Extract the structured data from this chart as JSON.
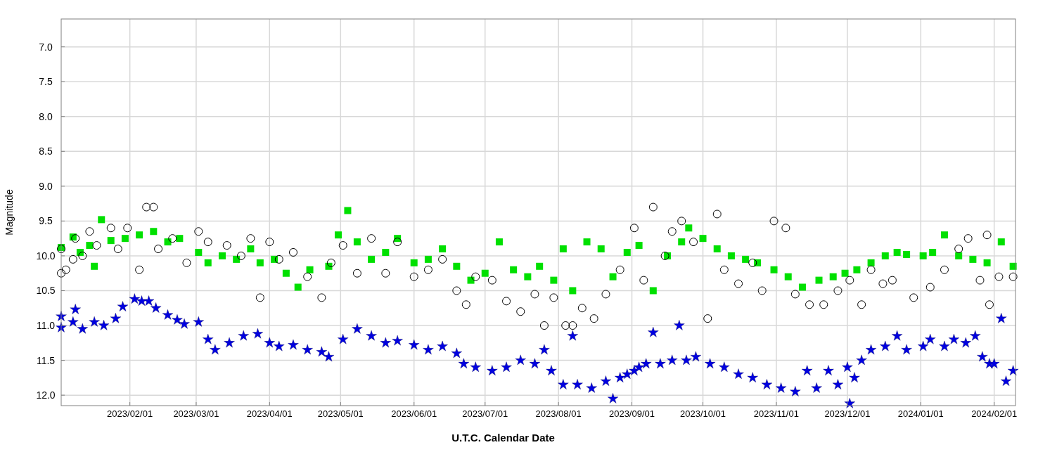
{
  "chart_data": {
    "type": "scatter",
    "xlabel": "U.T.C. Calendar Date",
    "ylabel": "Magnitude",
    "xlim": [
      "2023-01-03",
      "2024-02-10"
    ],
    "xticks": [
      {
        "value": "2023-02-01",
        "label": "2023/02/01"
      },
      {
        "value": "2023-03-01",
        "label": "2023/03/01"
      },
      {
        "value": "2023-04-01",
        "label": "2023/04/01"
      },
      {
        "value": "2023-05-01",
        "label": "2023/05/01"
      },
      {
        "value": "2023-06-01",
        "label": "2023/06/01"
      },
      {
        "value": "2023-07-01",
        "label": "2023/07/01"
      },
      {
        "value": "2023-08-01",
        "label": "2023/08/01"
      },
      {
        "value": "2023-09-01",
        "label": "2023/09/01"
      },
      {
        "value": "2023-10-01",
        "label": "2023/10/01"
      },
      {
        "value": "2023-11-01",
        "label": "2023/11/01"
      },
      {
        "value": "2023-12-01",
        "label": "2023/12/01"
      },
      {
        "value": "2024-01-01",
        "label": "2024/01/01"
      },
      {
        "value": "2024-02-01",
        "label": "2024/02/01"
      }
    ],
    "ylim": [
      12.15,
      6.6
    ],
    "yticks": [
      {
        "value": 7,
        "label": "7.0"
      },
      7.5,
      {
        "value": 8,
        "label": "8.0"
      },
      8.5,
      {
        "value": 9,
        "label": "9.0"
      },
      9.5,
      {
        "value": 10,
        "label": "10.0"
      },
      10.5,
      {
        "value": 11,
        "label": "11.0"
      },
      11.5,
      {
        "value": 12,
        "label": "12.0"
      }
    ],
    "grid": true,
    "series": [
      {
        "color": "#000000",
        "marker": "circle",
        "x": [
          "2023-01-03",
          "2023-01-03",
          "2023-01-05",
          "2023-01-08",
          "2023-01-09",
          "2023-01-12",
          "2023-01-15",
          "2023-01-18",
          "2023-01-24",
          "2023-01-27",
          "2023-01-31",
          "2023-02-05",
          "2023-02-08",
          "2023-02-11",
          "2023-02-13",
          "2023-02-19",
          "2023-02-25",
          "2023-03-02",
          "2023-03-06",
          "2023-03-14",
          "2023-03-20",
          "2023-03-24",
          "2023-03-28",
          "2023-04-01",
          "2023-04-05",
          "2023-04-11",
          "2023-04-17",
          "2023-04-23",
          "2023-04-27",
          "2023-05-02",
          "2023-05-08",
          "2023-05-14",
          "2023-05-20",
          "2023-05-25",
          "2023-06-01",
          "2023-06-07",
          "2023-06-13",
          "2023-06-19",
          "2023-06-23",
          "2023-06-27",
          "2023-07-04",
          "2023-07-10",
          "2023-07-16",
          "2023-07-22",
          "2023-07-26",
          "2023-07-30",
          "2023-08-04",
          "2023-08-07",
          "2023-08-11",
          "2023-08-16",
          "2023-08-21",
          "2023-08-27",
          "2023-09-02",
          "2023-09-06",
          "2023-09-10",
          "2023-09-15",
          "2023-09-18",
          "2023-09-22",
          "2023-09-27",
          "2023-10-03",
          "2023-10-07",
          "2023-10-10",
          "2023-10-16",
          "2023-10-22",
          "2023-10-26",
          "2023-10-31",
          "2023-11-05",
          "2023-11-09",
          "2023-11-15",
          "2023-11-21",
          "2023-11-27",
          "2023-12-02",
          "2023-12-07",
          "2023-12-11",
          "2023-12-16",
          "2023-12-20",
          "2023-12-29",
          "2024-01-05",
          "2024-01-11",
          "2024-01-17",
          "2024-01-21",
          "2024-01-26",
          "2024-01-29",
          "2024-01-30",
          "2024-02-03",
          "2024-02-09"
        ],
        "values": [
          9.9,
          10.25,
          10.2,
          10.05,
          9.75,
          10.0,
          9.65,
          9.85,
          9.6,
          9.9,
          9.6,
          10.2,
          9.3,
          9.3,
          9.9,
          9.75,
          10.1,
          9.65,
          9.8,
          9.85,
          10.0,
          9.75,
          10.6,
          9.8,
          10.05,
          9.95,
          10.3,
          10.6,
          10.1,
          9.85,
          10.25,
          9.75,
          10.25,
          9.8,
          10.3,
          10.2,
          10.05,
          10.5,
          10.7,
          10.3,
          10.35,
          10.65,
          10.8,
          10.55,
          11.0,
          10.6,
          11.0,
          11.0,
          10.75,
          10.9,
          10.55,
          10.2,
          9.6,
          10.35,
          9.3,
          10.0,
          9.65,
          9.5,
          9.8,
          10.9,
          9.4,
          10.2,
          10.4,
          10.1,
          10.5,
          9.5,
          9.6,
          10.55,
          10.7,
          10.7,
          10.5,
          10.35,
          10.7,
          10.2,
          10.4,
          10.35,
          10.6,
          10.45,
          10.2,
          9.9,
          9.75,
          10.35,
          9.7,
          10.7,
          10.3,
          10.3
        ]
      },
      {
        "color": "#00e000",
        "marker": "square",
        "x": [
          "2023-01-03",
          "2023-01-08",
          "2023-01-11",
          "2023-01-15",
          "2023-01-17",
          "2023-01-20",
          "2023-01-24",
          "2023-01-30",
          "2023-02-05",
          "2023-02-11",
          "2023-02-17",
          "2023-02-22",
          "2023-03-02",
          "2023-03-06",
          "2023-03-12",
          "2023-03-18",
          "2023-03-24",
          "2023-03-28",
          "2023-04-03",
          "2023-04-08",
          "2023-04-13",
          "2023-04-18",
          "2023-04-26",
          "2023-04-30",
          "2023-05-04",
          "2023-05-08",
          "2023-05-14",
          "2023-05-20",
          "2023-05-25",
          "2023-06-01",
          "2023-06-07",
          "2023-06-13",
          "2023-06-19",
          "2023-06-25",
          "2023-07-01",
          "2023-07-07",
          "2023-07-13",
          "2023-07-19",
          "2023-07-24",
          "2023-07-30",
          "2023-08-03",
          "2023-08-07",
          "2023-08-13",
          "2023-08-19",
          "2023-08-24",
          "2023-08-30",
          "2023-09-04",
          "2023-09-10",
          "2023-09-16",
          "2023-09-22",
          "2023-09-25",
          "2023-10-01",
          "2023-10-07",
          "2023-10-13",
          "2023-10-19",
          "2023-10-24",
          "2023-10-31",
          "2023-11-06",
          "2023-11-12",
          "2023-11-19",
          "2023-11-25",
          "2023-11-30",
          "2023-12-05",
          "2023-12-11",
          "2023-12-17",
          "2023-12-22",
          "2023-12-26",
          "2024-01-02",
          "2024-01-06",
          "2024-01-11",
          "2024-01-17",
          "2024-01-23",
          "2024-01-29",
          "2024-02-04",
          "2024-02-09"
        ],
        "values": [
          9.88,
          9.73,
          9.95,
          9.85,
          10.15,
          9.48,
          9.78,
          9.75,
          9.7,
          9.65,
          9.8,
          9.75,
          9.95,
          10.1,
          10.0,
          10.05,
          9.9,
          10.1,
          10.05,
          10.25,
          10.45,
          10.2,
          10.15,
          9.7,
          9.35,
          9.8,
          10.05,
          9.95,
          9.75,
          10.1,
          10.05,
          9.9,
          10.15,
          10.35,
          10.25,
          9.8,
          10.2,
          10.3,
          10.15,
          10.35,
          9.9,
          10.5,
          9.8,
          9.9,
          10.3,
          9.95,
          9.85,
          10.5,
          10.0,
          9.8,
          9.6,
          9.75,
          9.9,
          10.0,
          10.05,
          10.1,
          10.2,
          10.3,
          10.45,
          10.35,
          10.3,
          10.25,
          10.2,
          10.1,
          10.0,
          9.95,
          9.98,
          10.0,
          9.95,
          9.7,
          10.0,
          10.05,
          10.1,
          9.8,
          10.15
        ]
      },
      {
        "color": "#0000e0",
        "marker": "star",
        "x": [
          "2023-01-03",
          "2023-01-03",
          "2023-01-08",
          "2023-01-09",
          "2023-01-12",
          "2023-01-17",
          "2023-01-21",
          "2023-01-26",
          "2023-01-29",
          "2023-02-03",
          "2023-02-06",
          "2023-02-09",
          "2023-02-12",
          "2023-02-17",
          "2023-02-21",
          "2023-02-24",
          "2023-03-02",
          "2023-03-06",
          "2023-03-09",
          "2023-03-15",
          "2023-03-21",
          "2023-03-27",
          "2023-04-01",
          "2023-04-05",
          "2023-04-11",
          "2023-04-17",
          "2023-04-23",
          "2023-04-26",
          "2023-05-02",
          "2023-05-08",
          "2023-05-14",
          "2023-05-20",
          "2023-05-25",
          "2023-06-01",
          "2023-06-07",
          "2023-06-13",
          "2023-06-19",
          "2023-06-22",
          "2023-06-27",
          "2023-07-04",
          "2023-07-10",
          "2023-07-16",
          "2023-07-22",
          "2023-07-26",
          "2023-07-29",
          "2023-08-03",
          "2023-08-07",
          "2023-08-09",
          "2023-08-15",
          "2023-08-21",
          "2023-08-24",
          "2023-08-27",
          "2023-08-30",
          "2023-09-02",
          "2023-09-04",
          "2023-09-07",
          "2023-09-10",
          "2023-09-13",
          "2023-09-18",
          "2023-09-21",
          "2023-09-24",
          "2023-09-28",
          "2023-10-04",
          "2023-10-10",
          "2023-10-16",
          "2023-10-22",
          "2023-10-28",
          "2023-11-03",
          "2023-11-09",
          "2023-11-14",
          "2023-11-18",
          "2023-11-23",
          "2023-11-27",
          "2023-12-01",
          "2023-12-02",
          "2023-12-04",
          "2023-12-07",
          "2023-12-11",
          "2023-12-17",
          "2023-12-22",
          "2023-12-26",
          "2024-01-02",
          "2024-01-05",
          "2024-01-11",
          "2024-01-15",
          "2024-01-20",
          "2024-01-24",
          "2024-01-27",
          "2024-01-30",
          "2024-02-01",
          "2024-02-04",
          "2024-02-06",
          "2024-02-09"
        ],
        "values": [
          10.87,
          11.03,
          10.95,
          10.77,
          11.05,
          10.95,
          11.0,
          10.9,
          10.73,
          10.62,
          10.65,
          10.65,
          10.75,
          10.85,
          10.92,
          10.98,
          10.95,
          11.2,
          11.35,
          11.25,
          11.15,
          11.12,
          11.25,
          11.3,
          11.28,
          11.35,
          11.38,
          11.45,
          11.2,
          11.05,
          11.15,
          11.25,
          11.22,
          11.28,
          11.35,
          11.3,
          11.4,
          11.55,
          11.6,
          11.65,
          11.6,
          11.5,
          11.55,
          11.35,
          11.65,
          11.85,
          11.15,
          11.85,
          11.9,
          11.8,
          12.05,
          11.75,
          11.7,
          11.65,
          11.6,
          11.55,
          11.1,
          11.55,
          11.5,
          11.0,
          11.5,
          11.45,
          11.55,
          11.6,
          11.7,
          11.75,
          11.85,
          11.9,
          11.95,
          11.65,
          11.9,
          11.65,
          11.85,
          11.6,
          12.12,
          11.75,
          11.5,
          11.35,
          11.3,
          11.15,
          11.35,
          11.3,
          11.2,
          11.3,
          11.2,
          11.25,
          11.15,
          11.45,
          11.55,
          11.55,
          10.9,
          11.8,
          11.65
        ]
      }
    ]
  }
}
